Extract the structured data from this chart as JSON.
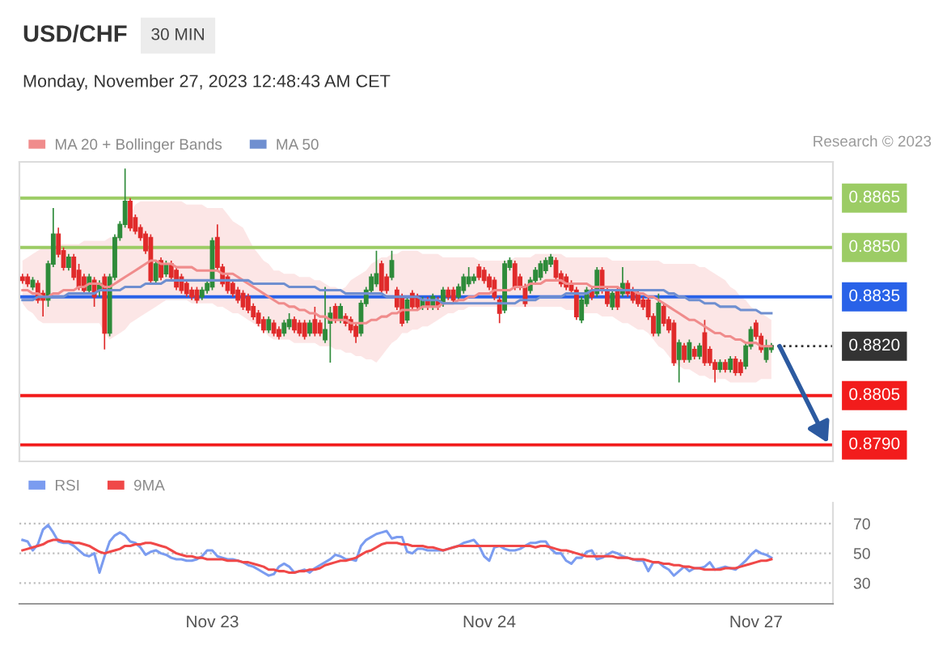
{
  "chart_data": [
    {
      "type": "candlestick",
      "title": "USD/CHF",
      "subtitle": "Monday, November 27, 2023 12:48:43 AM CET",
      "annotations": [
        "30 MIN",
        "Research © 2023"
      ],
      "categories": [
        null,
        null,
        null,
        null,
        null,
        null,
        null,
        null,
        null,
        null,
        null,
        null,
        null,
        null,
        null,
        null,
        null,
        null,
        null,
        null,
        null,
        null,
        null,
        null,
        null,
        null,
        null,
        null,
        null,
        null,
        null,
        null,
        null,
        null,
        null,
        null,
        null,
        "Nov 23",
        null,
        null,
        null,
        null,
        null,
        null,
        null,
        null,
        null,
        null,
        null,
        null,
        null,
        null,
        null,
        null,
        null,
        null,
        null,
        null,
        null,
        null,
        null,
        null,
        null,
        null,
        null,
        null,
        null,
        null,
        null,
        null,
        null,
        null,
        null,
        null,
        null,
        null,
        null,
        null,
        null,
        null,
        null,
        null,
        null,
        null,
        null,
        null,
        null,
        null,
        null,
        null,
        null,
        "Nov 24",
        null,
        null,
        null,
        null,
        null,
        null,
        null,
        null,
        null,
        null,
        null,
        null,
        null,
        null,
        null,
        null,
        null,
        null,
        null,
        null,
        null,
        null,
        null,
        null,
        null,
        null,
        null,
        null,
        null,
        null,
        null,
        null,
        null,
        null,
        null,
        null,
        null,
        null,
        null,
        null,
        null,
        null,
        null,
        null,
        null,
        null,
        null,
        null,
        null,
        null,
        null,
        "Nov 27",
        null,
        null,
        null
      ],
      "ohlc": [
        [
          0.8841,
          0.8842,
          0.8839,
          0.884
        ],
        [
          0.8841,
          0.8842,
          0.8838,
          0.8839
        ],
        [
          0.8838,
          0.8841,
          0.8837,
          0.884
        ],
        [
          0.8839,
          0.884,
          0.8833,
          0.8834
        ],
        [
          0.8836,
          0.8837,
          0.8829,
          0.8834
        ],
        [
          0.8834,
          0.8846,
          0.8832,
          0.8845
        ],
        [
          0.8845,
          0.8862,
          0.8844,
          0.8854
        ],
        [
          0.8854,
          0.8856,
          0.8847,
          0.8848
        ],
        [
          0.8849,
          0.885,
          0.8843,
          0.8844
        ],
        [
          0.8844,
          0.8848,
          0.8843,
          0.8847
        ],
        [
          0.8847,
          0.8848,
          0.884,
          0.8841
        ],
        [
          0.8843,
          0.8845,
          0.8837,
          0.8838
        ],
        [
          0.8841,
          0.8842,
          0.8836,
          0.8837
        ],
        [
          0.8837,
          0.8842,
          0.8836,
          0.8841
        ],
        [
          0.884,
          0.8841,
          0.8832,
          0.8835
        ],
        [
          0.8837,
          0.884,
          0.8835,
          0.8839
        ],
        [
          0.8841,
          0.8842,
          0.8819,
          0.8824
        ],
        [
          0.8824,
          0.8842,
          0.8823,
          0.8841
        ],
        [
          0.8841,
          0.8854,
          0.884,
          0.8853
        ],
        [
          0.8853,
          0.8858,
          0.8852,
          0.8857
        ],
        [
          0.8857,
          0.8874,
          0.8856,
          0.8864
        ],
        [
          0.8864,
          0.8865,
          0.8855,
          0.8856
        ],
        [
          0.8859,
          0.886,
          0.8854,
          0.8855
        ],
        [
          0.8856,
          0.8857,
          0.8852,
          0.8853
        ],
        [
          0.8854,
          0.8855,
          0.8848,
          0.8849
        ],
        [
          0.8853,
          0.8854,
          0.8839,
          0.884
        ],
        [
          0.884,
          0.8846,
          0.8839,
          0.8845
        ],
        [
          0.8846,
          0.8847,
          0.884,
          0.8841
        ],
        [
          0.8842,
          0.8846,
          0.8841,
          0.8845
        ],
        [
          0.8845,
          0.8846,
          0.884,
          0.8841
        ],
        [
          0.8843,
          0.8844,
          0.8837,
          0.8838
        ],
        [
          0.8841,
          0.8842,
          0.8836,
          0.8837
        ],
        [
          0.8839,
          0.884,
          0.8835,
          0.8836
        ],
        [
          0.8837,
          0.8838,
          0.8834,
          0.8835
        ],
        [
          0.8837,
          0.8838,
          0.8833,
          0.8834
        ],
        [
          0.8835,
          0.8838,
          0.8834,
          0.8837
        ],
        [
          0.8837,
          0.884,
          0.8836,
          0.8839
        ],
        [
          0.8838,
          0.8853,
          0.8837,
          0.8852
        ],
        [
          0.8853,
          0.8857,
          0.8843,
          0.8844
        ],
        [
          0.8844,
          0.8845,
          0.8838,
          0.8839
        ],
        [
          0.8841,
          0.8842,
          0.8836,
          0.8837
        ],
        [
          0.8839,
          0.884,
          0.8835,
          0.8836
        ],
        [
          0.8837,
          0.8838,
          0.8833,
          0.8834
        ],
        [
          0.8836,
          0.8837,
          0.8831,
          0.8832
        ],
        [
          0.8835,
          0.8836,
          0.883,
          0.8831
        ],
        [
          0.8832,
          0.8833,
          0.8828,
          0.8829
        ],
        [
          0.883,
          0.8831,
          0.8826,
          0.8827
        ],
        [
          0.8828,
          0.8829,
          0.8824,
          0.8825
        ],
        [
          0.8825,
          0.8829,
          0.8824,
          0.8828
        ],
        [
          0.8827,
          0.8828,
          0.8823,
          0.8824
        ],
        [
          0.8825,
          0.8826,
          0.8822,
          0.8823
        ],
        [
          0.8824,
          0.8828,
          0.8823,
          0.8827
        ],
        [
          0.8826,
          0.883,
          0.8825,
          0.8828
        ],
        [
          0.8828,
          0.8829,
          0.8824,
          0.8825
        ],
        [
          0.8827,
          0.8828,
          0.8823,
          0.8824
        ],
        [
          0.8827,
          0.8828,
          0.8822,
          0.8823
        ],
        [
          0.8824,
          0.8828,
          0.8823,
          0.8827
        ],
        [
          0.8828,
          0.8832,
          0.8823,
          0.8824
        ],
        [
          0.8827,
          0.8828,
          0.8823,
          0.8824
        ],
        [
          0.8822,
          0.8838,
          0.8821,
          0.8825
        ],
        [
          0.8827,
          0.8832,
          0.8815,
          0.883
        ],
        [
          0.8832,
          0.8833,
          0.8827,
          0.8828
        ],
        [
          0.8828,
          0.8833,
          0.8827,
          0.8832
        ],
        [
          0.8829,
          0.883,
          0.8826,
          0.8827
        ],
        [
          0.8828,
          0.8829,
          0.8824,
          0.8825
        ],
        [
          0.8826,
          0.8827,
          0.8821,
          0.8823
        ],
        [
          0.8824,
          0.8834,
          0.8823,
          0.8833
        ],
        [
          0.8833,
          0.8838,
          0.8832,
          0.8837
        ],
        [
          0.8837,
          0.8842,
          0.8836,
          0.8841
        ],
        [
          0.8839,
          0.8849,
          0.8838,
          0.8842
        ],
        [
          0.8845,
          0.8846,
          0.8836,
          0.8837
        ],
        [
          0.8841,
          0.8842,
          0.8836,
          0.8837
        ],
        [
          0.8841,
          0.8849,
          0.884,
          0.8846
        ],
        [
          0.8837,
          0.8838,
          0.8831,
          0.8832
        ],
        [
          0.8835,
          0.8836,
          0.8826,
          0.8827
        ],
        [
          0.8828,
          0.8835,
          0.8827,
          0.8834
        ],
        [
          0.8836,
          0.8837,
          0.8831,
          0.8832
        ],
        [
          0.8835,
          0.8836,
          0.8831,
          0.8832
        ],
        [
          0.8832,
          0.8835,
          0.8831,
          0.8834
        ],
        [
          0.8834,
          0.8835,
          0.8831,
          0.8832
        ],
        [
          0.8832,
          0.8836,
          0.8831,
          0.8835
        ],
        [
          0.8834,
          0.8835,
          0.8831,
          0.8832
        ],
        [
          0.8833,
          0.8838,
          0.8832,
          0.8837
        ],
        [
          0.8837,
          0.8838,
          0.8834,
          0.8835
        ],
        [
          0.8837,
          0.8838,
          0.8833,
          0.8834
        ],
        [
          0.8835,
          0.8839,
          0.8834,
          0.8838
        ],
        [
          0.8837,
          0.8842,
          0.8836,
          0.8841
        ],
        [
          0.8839,
          0.8844,
          0.8838,
          0.8841
        ],
        [
          0.884,
          0.8842,
          0.8839,
          0.8841
        ],
        [
          0.8844,
          0.8845,
          0.884,
          0.8841
        ],
        [
          0.8843,
          0.8844,
          0.8839,
          0.884
        ],
        [
          0.8841,
          0.8842,
          0.8837,
          0.8838
        ],
        [
          0.884,
          0.8841,
          0.8834,
          0.8835
        ],
        [
          0.8834,
          0.8835,
          0.8827,
          0.883
        ],
        [
          0.8831,
          0.8846,
          0.883,
          0.8845
        ],
        [
          0.8844,
          0.8847,
          0.8843,
          0.8846
        ],
        [
          0.8845,
          0.8846,
          0.8837,
          0.8838
        ],
        [
          0.8841,
          0.8842,
          0.8837,
          0.8838
        ],
        [
          0.8838,
          0.8839,
          0.8832,
          0.8833
        ],
        [
          0.8837,
          0.8841,
          0.8836,
          0.884
        ],
        [
          0.884,
          0.8844,
          0.8839,
          0.8843
        ],
        [
          0.8841,
          0.8846,
          0.884,
          0.8845
        ],
        [
          0.8843,
          0.8847,
          0.8842,
          0.8846
        ],
        [
          0.8845,
          0.8848,
          0.8844,
          0.8847
        ],
        [
          0.8846,
          0.8847,
          0.884,
          0.8841
        ],
        [
          0.8842,
          0.8843,
          0.8838,
          0.8839
        ],
        [
          0.8841,
          0.8842,
          0.8837,
          0.8838
        ],
        [
          0.8839,
          0.884,
          0.8836,
          0.8837
        ],
        [
          0.8837,
          0.8838,
          0.8828,
          0.8829
        ],
        [
          0.8828,
          0.8835,
          0.8827,
          0.8834
        ],
        [
          0.8833,
          0.8838,
          0.8832,
          0.8837
        ],
        [
          0.8837,
          0.8838,
          0.8834,
          0.8835
        ],
        [
          0.8836,
          0.8844,
          0.8835,
          0.8843
        ],
        [
          0.8843,
          0.8844,
          0.8836,
          0.8837
        ],
        [
          0.8837,
          0.8838,
          0.8832,
          0.8833
        ],
        [
          0.8832,
          0.8837,
          0.8831,
          0.8836
        ],
        [
          0.8837,
          0.8838,
          0.8831,
          0.8832
        ],
        [
          0.8836,
          0.8844,
          0.8835,
          0.8839
        ],
        [
          0.8839,
          0.884,
          0.8835,
          0.8836
        ],
        [
          0.8837,
          0.8838,
          0.8833,
          0.8834
        ],
        [
          0.8836,
          0.8837,
          0.8832,
          0.8833
        ],
        [
          0.8834,
          0.8835,
          0.8831,
          0.8832
        ],
        [
          0.8834,
          0.8835,
          0.8828,
          0.8829
        ],
        [
          0.8829,
          0.883,
          0.8823,
          0.8824
        ],
        [
          0.8824,
          0.8836,
          0.8823,
          0.8833
        ],
        [
          0.8832,
          0.8833,
          0.8826,
          0.8827
        ],
        [
          0.8828,
          0.8829,
          0.8824,
          0.8825
        ],
        [
          0.8827,
          0.8828,
          0.8814,
          0.8815
        ],
        [
          0.8816,
          0.8822,
          0.8809,
          0.8821
        ],
        [
          0.882,
          0.8821,
          0.8815,
          0.8816
        ],
        [
          0.8816,
          0.8822,
          0.8815,
          0.8821
        ],
        [
          0.8819,
          0.882,
          0.8816,
          0.8817
        ],
        [
          0.8817,
          0.8821,
          0.8816,
          0.882
        ],
        [
          0.8824,
          0.8828,
          0.8814,
          0.8815
        ],
        [
          0.8819,
          0.882,
          0.8814,
          0.8815
        ],
        [
          0.8815,
          0.8816,
          0.8809,
          0.8813
        ],
        [
          0.8813,
          0.8816,
          0.8812,
          0.8815
        ],
        [
          0.8815,
          0.8816,
          0.8812,
          0.8813
        ],
        [
          0.8813,
          0.8817,
          0.8812,
          0.8816
        ],
        [
          0.8816,
          0.8817,
          0.8811,
          0.8812
        ],
        [
          0.8815,
          0.8816,
          0.8811,
          0.8812
        ],
        [
          0.8814,
          0.8821,
          0.8813,
          0.882
        ],
        [
          0.882,
          0.8826,
          0.8819,
          0.8825
        ],
        [
          0.8827,
          0.8828,
          0.8822,
          0.8823
        ],
        [
          0.8823,
          0.8824,
          0.8818,
          0.8819
        ],
        [
          0.8816,
          0.8822,
          0.8815,
          0.882
        ],
        [
          0.8819,
          0.8821,
          0.8818,
          0.882
        ]
      ],
      "colors": [
        "#e02b2b",
        "#e02b2b",
        "#2e8b3a",
        "#e02b2b",
        "#e02b2b",
        "#2e8b3a",
        "#2e8b3a",
        "#e02b2b",
        "#e02b2b",
        "#2e8b3a",
        "#e02b2b",
        "#e02b2b",
        "#e02b2b",
        "#2e8b3a",
        "#e02b2b",
        "#2e8b3a",
        "#e02b2b",
        "#2e8b3a",
        "#2e8b3a",
        "#2e8b3a",
        "#2e8b3a",
        "#e02b2b",
        "#e02b2b",
        "#e02b2b",
        "#e02b2b",
        "#e02b2b",
        "#2e8b3a",
        "#e02b2b",
        "#2e8b3a",
        "#e02b2b",
        "#e02b2b",
        "#e02b2b",
        "#e02b2b",
        "#e02b2b",
        "#e02b2b",
        "#2e8b3a",
        "#2e8b3a",
        "#2e8b3a",
        "#e02b2b",
        "#e02b2b",
        "#e02b2b",
        "#e02b2b",
        "#e02b2b",
        "#e02b2b",
        "#e02b2b",
        "#e02b2b",
        "#e02b2b",
        "#e02b2b",
        "#2e8b3a",
        "#e02b2b",
        "#e02b2b",
        "#2e8b3a",
        "#2e8b3a",
        "#e02b2b",
        "#e02b2b",
        "#e02b2b",
        "#2e8b3a",
        "#e02b2b",
        "#e02b2b",
        "#2e8b3a",
        "#2e8b3a",
        "#e02b2b",
        "#2e8b3a",
        "#e02b2b",
        "#e02b2b",
        "#e02b2b",
        "#2e8b3a",
        "#2e8b3a",
        "#2e8b3a",
        "#2e8b3a",
        "#e02b2b",
        "#e02b2b",
        "#2e8b3a",
        "#e02b2b",
        "#e02b2b",
        "#2e8b3a",
        "#e02b2b",
        "#e02b2b",
        "#2e8b3a",
        "#e02b2b",
        "#2e8b3a",
        "#e02b2b",
        "#2e8b3a",
        "#e02b2b",
        "#e02b2b",
        "#2e8b3a",
        "#2e8b3a",
        "#2e8b3a",
        "#2e8b3a",
        "#e02b2b",
        "#e02b2b",
        "#e02b2b",
        "#e02b2b",
        "#e02b2b",
        "#2e8b3a",
        "#2e8b3a",
        "#e02b2b",
        "#e02b2b",
        "#e02b2b",
        "#2e8b3a",
        "#2e8b3a",
        "#2e8b3a",
        "#2e8b3a",
        "#2e8b3a",
        "#e02b2b",
        "#e02b2b",
        "#e02b2b",
        "#e02b2b",
        "#e02b2b",
        "#2e8b3a",
        "#2e8b3a",
        "#e02b2b",
        "#2e8b3a",
        "#e02b2b",
        "#e02b2b",
        "#2e8b3a",
        "#e02b2b",
        "#2e8b3a",
        "#e02b2b",
        "#e02b2b",
        "#e02b2b",
        "#e02b2b",
        "#e02b2b",
        "#e02b2b",
        "#2e8b3a",
        "#e02b2b",
        "#e02b2b",
        "#e02b2b",
        "#2e8b3a",
        "#e02b2b",
        "#2e8b3a",
        "#e02b2b",
        "#2e8b3a",
        "#e02b2b",
        "#e02b2b",
        "#e02b2b",
        "#2e8b3a",
        "#e02b2b",
        "#2e8b3a",
        "#e02b2b",
        "#e02b2b",
        "#2e8b3a",
        "#2e8b3a",
        "#e02b2b",
        "#e02b2b",
        "#2e8b3a",
        "#2e8b3a"
      ],
      "series": [
        {
          "name": "MA 20 + Bollinger Bands",
          "type": "line",
          "color": "#f08c8c",
          "values": [
            0.8837,
            0.8837,
            0.8836,
            0.8836,
            0.8835,
            0.8835,
            0.8836,
            0.8836,
            0.8837,
            0.8837,
            0.8837,
            0.8838,
            0.8838,
            0.8839,
            0.8839,
            0.8839,
            0.8838,
            0.8838,
            0.8839,
            0.884,
            0.8841,
            0.8842,
            0.8843,
            0.8844,
            0.8845,
            0.8846,
            0.8846,
            0.8845,
            0.8845,
            0.8845,
            0.8844,
            0.8844,
            0.8844,
            0.8844,
            0.8843,
            0.8843,
            0.8843,
            0.8843,
            0.8843,
            0.8842,
            0.8842,
            0.8842,
            0.8841,
            0.884,
            0.8839,
            0.8838,
            0.8837,
            0.8836,
            0.8835,
            0.8834,
            0.8833,
            0.8833,
            0.8832,
            0.8832,
            0.8831,
            0.8831,
            0.883,
            0.883,
            0.8829,
            0.8829,
            0.8828,
            0.8828,
            0.8828,
            0.8828,
            0.8827,
            0.8827,
            0.8827,
            0.8827,
            0.8828,
            0.8828,
            0.8829,
            0.8829,
            0.883,
            0.883,
            0.8831,
            0.8831,
            0.8831,
            0.8831,
            0.8832,
            0.8832,
            0.8832,
            0.8832,
            0.8833,
            0.8833,
            0.8833,
            0.8834,
            0.8834,
            0.8835,
            0.8835,
            0.8836,
            0.8836,
            0.8836,
            0.8837,
            0.8837,
            0.8837,
            0.8837,
            0.8838,
            0.8838,
            0.8838,
            0.8839,
            0.8839,
            0.8839,
            0.884,
            0.884,
            0.884,
            0.884,
            0.8839,
            0.8839,
            0.8839,
            0.8839,
            0.8839,
            0.8838,
            0.8838,
            0.8838,
            0.8838,
            0.8838,
            0.8838,
            0.8837,
            0.8837,
            0.8837,
            0.8836,
            0.8836,
            0.8835,
            0.8835,
            0.8834,
            0.8833,
            0.8832,
            0.8831,
            0.883,
            0.8829,
            0.8828,
            0.8828,
            0.8827,
            0.8826,
            0.8825,
            0.8824,
            0.8824,
            0.8823,
            0.8823,
            0.8822,
            0.8822,
            0.8821,
            0.8821,
            0.8821,
            0.882,
            0.882,
            0.882
          ],
          "lower": [
            0.8833,
            0.8831,
            0.883,
            0.8828,
            0.8827,
            0.8827,
            0.8827,
            0.8827,
            0.8827,
            0.8827,
            0.8827,
            0.8827,
            0.8827,
            0.8827,
            0.8827,
            0.8827,
            0.8824,
            0.8822,
            0.8823,
            0.8824,
            0.8825,
            0.8827,
            0.8828,
            0.8829,
            0.883,
            0.8831,
            0.8832,
            0.8833,
            0.8834,
            0.8834,
            0.8834,
            0.8834,
            0.8834,
            0.8833,
            0.8833,
            0.8833,
            0.8833,
            0.8833,
            0.8832,
            0.8832,
            0.8831,
            0.883,
            0.883,
            0.8829,
            0.8828,
            0.8827,
            0.8826,
            0.8825,
            0.8823,
            0.8822,
            0.8822,
            0.8822,
            0.8822,
            0.8821,
            0.8821,
            0.8821,
            0.8821,
            0.8821,
            0.882,
            0.882,
            0.882,
            0.8819,
            0.8819,
            0.8818,
            0.8818,
            0.8817,
            0.8817,
            0.8816,
            0.8816,
            0.8815,
            0.8817,
            0.8819,
            0.8821,
            0.8822,
            0.8824,
            0.8824,
            0.8825,
            0.8825,
            0.8826,
            0.8826,
            0.8827,
            0.8828,
            0.8829,
            0.883,
            0.883,
            0.8831,
            0.8831,
            0.8832,
            0.8832,
            0.8832,
            0.8832,
            0.8832,
            0.8832,
            0.8832,
            0.8832,
            0.8832,
            0.8832,
            0.8832,
            0.8832,
            0.8832,
            0.8832,
            0.8832,
            0.8832,
            0.8832,
            0.8832,
            0.8832,
            0.8831,
            0.8831,
            0.8831,
            0.883,
            0.883,
            0.883,
            0.883,
            0.8829,
            0.8829,
            0.8829,
            0.8828,
            0.8827,
            0.8827,
            0.8826,
            0.8825,
            0.8825,
            0.8824,
            0.8822,
            0.882,
            0.8819,
            0.8817,
            0.8815,
            0.8814,
            0.8813,
            0.8813,
            0.8812,
            0.8811,
            0.8811,
            0.881,
            0.881,
            0.881,
            0.881,
            0.8809,
            0.8809,
            0.8809,
            0.8809,
            0.8809,
            0.8809,
            0.881,
            0.881,
            0.881
          ],
          "upper": [
            0.8846,
            0.8847,
            0.8848,
            0.8849,
            0.885,
            0.885,
            0.885,
            0.8851,
            0.8851,
            0.8851,
            0.8851,
            0.8851,
            0.8852,
            0.8852,
            0.8852,
            0.8852,
            0.8852,
            0.8853,
            0.8853,
            0.8855,
            0.8858,
            0.886,
            0.8863,
            0.8864,
            0.8864,
            0.8864,
            0.8864,
            0.8864,
            0.8864,
            0.8864,
            0.8864,
            0.8864,
            0.8863,
            0.8863,
            0.8863,
            0.8863,
            0.8862,
            0.8862,
            0.8862,
            0.8862,
            0.886,
            0.8858,
            0.8857,
            0.8856,
            0.8853,
            0.885,
            0.8848,
            0.8846,
            0.8845,
            0.8843,
            0.8843,
            0.8842,
            0.8842,
            0.8842,
            0.8841,
            0.8841,
            0.8841,
            0.884,
            0.884,
            0.8839,
            0.8838,
            0.8838,
            0.8837,
            0.8838,
            0.884,
            0.8841,
            0.8842,
            0.8843,
            0.8845,
            0.8846,
            0.8847,
            0.8847,
            0.8848,
            0.8848,
            0.8849,
            0.8849,
            0.8849,
            0.8849,
            0.8848,
            0.8848,
            0.8848,
            0.8848,
            0.8847,
            0.8847,
            0.8847,
            0.8847,
            0.8847,
            0.8847,
            0.8847,
            0.8846,
            0.8846,
            0.8846,
            0.8846,
            0.8846,
            0.8846,
            0.8846,
            0.8847,
            0.8847,
            0.8847,
            0.8847,
            0.8848,
            0.8848,
            0.8848,
            0.8848,
            0.8848,
            0.8848,
            0.8847,
            0.8847,
            0.8847,
            0.8847,
            0.8847,
            0.8847,
            0.8847,
            0.8847,
            0.8847,
            0.8846,
            0.8846,
            0.8846,
            0.8846,
            0.8846,
            0.8846,
            0.8846,
            0.8846,
            0.8846,
            0.8846,
            0.8845,
            0.8845,
            0.8845,
            0.8845,
            0.8845,
            0.8845,
            0.8845,
            0.8844,
            0.8844,
            0.8843,
            0.8842,
            0.8841,
            0.884,
            0.8838,
            0.8837,
            0.8835,
            0.8834,
            0.8832,
            0.8831,
            0.883,
            0.8829,
            0.8828
          ]
        },
        {
          "name": "MA 50",
          "type": "line",
          "color": "#6f8fd0",
          "values": [
            0.8834,
            0.8834,
            0.8834,
            0.8835,
            0.8835,
            0.8835,
            0.8835,
            0.8835,
            0.8835,
            0.8836,
            0.8836,
            0.8836,
            0.8836,
            0.8836,
            0.8836,
            0.8837,
            0.8837,
            0.8837,
            0.8837,
            0.8837,
            0.8838,
            0.8838,
            0.8838,
            0.8838,
            0.8839,
            0.8839,
            0.8839,
            0.8839,
            0.884,
            0.884,
            0.884,
            0.884,
            0.884,
            0.884,
            0.884,
            0.884,
            0.884,
            0.884,
            0.884,
            0.884,
            0.884,
            0.884,
            0.884,
            0.884,
            0.884,
            0.8839,
            0.8839,
            0.8839,
            0.8839,
            0.8839,
            0.8839,
            0.8839,
            0.8838,
            0.8838,
            0.8838,
            0.8838,
            0.8838,
            0.8838,
            0.8837,
            0.8837,
            0.8837,
            0.8837,
            0.8837,
            0.8836,
            0.8836,
            0.8836,
            0.8836,
            0.8836,
            0.8836,
            0.8836,
            0.8836,
            0.8835,
            0.8835,
            0.8835,
            0.8835,
            0.8835,
            0.8835,
            0.8835,
            0.8834,
            0.8834,
            0.8834,
            0.8834,
            0.8833,
            0.8833,
            0.8833,
            0.8833,
            0.8833,
            0.8833,
            0.8833,
            0.8833,
            0.8833,
            0.8833,
            0.8833,
            0.8833,
            0.8833,
            0.8833,
            0.8833,
            0.8834,
            0.8834,
            0.8834,
            0.8834,
            0.8835,
            0.8835,
            0.8835,
            0.8835,
            0.8835,
            0.8836,
            0.8836,
            0.8836,
            0.8836,
            0.8836,
            0.8837,
            0.8837,
            0.8837,
            0.8837,
            0.8837,
            0.8837,
            0.8837,
            0.8837,
            0.8837,
            0.8837,
            0.8837,
            0.8837,
            0.8837,
            0.8837,
            0.8837,
            0.8836,
            0.8836,
            0.8835,
            0.8835,
            0.8834,
            0.8834,
            0.8834,
            0.8833,
            0.8833,
            0.8833,
            0.8832,
            0.8832,
            0.8832,
            0.8832,
            0.8831,
            0.8831,
            0.8831,
            0.8831,
            0.883,
            0.883,
            0.883
          ]
        }
      ],
      "ylim": [
        0.8785,
        0.8876
      ],
      "ref_lines": [
        {
          "axis": "y",
          "value": 0.8865,
          "label": "0.8865",
          "color": "#9ccc65"
        },
        {
          "axis": "y",
          "value": 0.885,
          "label": "0.8850",
          "color": "#9ccc65"
        },
        {
          "axis": "y",
          "value": 0.8835,
          "label": "0.8835",
          "color": "#2962e8"
        },
        {
          "axis": "y",
          "value": 0.882,
          "label": "0.8820",
          "color": "#333333",
          "line_style": "dotted"
        },
        {
          "axis": "y",
          "value": 0.8805,
          "label": "0.8805",
          "color": "#f21c1c"
        },
        {
          "axis": "y",
          "value": 0.879,
          "label": "0.8790",
          "color": "#f21c1c"
        }
      ],
      "legend": "top left",
      "tick_labels": false
    },
    {
      "type": "line",
      "categories": [
        null,
        null,
        null,
        null,
        null,
        null,
        null,
        null,
        null,
        null,
        null,
        null,
        null,
        null,
        null,
        null,
        null,
        null,
        null,
        null,
        null,
        null,
        null,
        null,
        null,
        null,
        null,
        null,
        null,
        null,
        null,
        null,
        null,
        null,
        null,
        null,
        null,
        "Nov 23",
        null,
        null,
        null,
        null,
        null,
        null,
        null,
        null,
        null,
        null,
        null,
        null,
        null,
        null,
        null,
        null,
        null,
        null,
        null,
        null,
        null,
        null,
        null,
        null,
        null,
        null,
        null,
        null,
        null,
        null,
        null,
        null,
        null,
        null,
        null,
        null,
        null,
        null,
        null,
        null,
        null,
        null,
        null,
        null,
        null,
        null,
        null,
        null,
        null,
        null,
        null,
        null,
        null,
        "Nov 24",
        null,
        null,
        null,
        null,
        null,
        null,
        null,
        null,
        null,
        null,
        null,
        null,
        null,
        null,
        null,
        null,
        null,
        null,
        null,
        null,
        null,
        null,
        null,
        null,
        null,
        null,
        null,
        null,
        null,
        null,
        null,
        null,
        null,
        null,
        null,
        null,
        null,
        null,
        null,
        null,
        null,
        null,
        null,
        null,
        null,
        null,
        null,
        null,
        null,
        null,
        null,
        "Nov 27",
        null,
        null,
        null
      ],
      "series": [
        {
          "name": "RSI",
          "color": "#7b9cf0",
          "values": [
            59,
            58,
            52,
            56,
            66,
            69,
            64,
            58,
            57,
            57,
            55,
            52,
            49,
            48,
            50,
            37,
            48,
            58,
            62,
            64,
            62,
            58,
            57,
            54,
            49,
            51,
            52,
            50,
            49,
            47,
            46,
            46,
            45,
            45,
            46,
            48,
            52,
            52,
            48,
            47,
            46,
            46,
            45,
            44,
            42,
            41,
            39,
            37,
            35,
            36,
            41,
            43,
            41,
            37,
            38,
            39,
            37,
            40,
            42,
            44,
            46,
            49,
            48,
            46,
            46,
            45,
            55,
            59,
            61,
            63,
            64,
            65,
            60,
            61,
            61,
            51,
            50,
            53,
            53,
            52,
            52,
            52,
            52,
            53,
            54,
            55,
            57,
            58,
            59,
            55,
            48,
            45,
            54,
            55,
            53,
            52,
            52,
            53,
            55,
            57,
            57,
            58,
            58,
            53,
            50,
            50,
            45,
            43,
            47,
            47,
            51,
            52,
            46,
            47,
            49,
            51,
            50,
            48,
            47,
            46,
            45,
            45,
            38,
            44,
            44,
            41,
            39,
            35,
            38,
            41,
            38,
            40,
            40,
            41,
            44,
            39,
            40,
            41,
            40,
            39,
            42,
            45,
            49,
            52,
            50,
            49,
            47
          ]
        },
        {
          "name": "9MA",
          "color": "#f04848",
          "values": [
            52,
            53,
            54,
            55,
            56,
            58,
            59,
            59,
            58,
            58,
            57,
            57,
            56,
            55,
            53,
            51,
            50,
            51,
            52,
            53,
            55,
            55,
            56,
            56,
            57,
            57,
            56,
            55,
            54,
            52,
            50,
            49,
            48,
            48,
            47,
            47,
            46,
            46,
            46,
            46,
            45,
            45,
            45,
            44,
            44,
            43,
            42,
            41,
            39,
            39,
            38,
            38,
            37,
            37,
            38,
            38,
            39,
            39,
            40,
            42,
            43,
            44,
            45,
            45,
            46,
            47,
            49,
            51,
            52,
            54,
            56,
            57,
            57,
            57,
            56,
            56,
            55,
            55,
            55,
            54,
            54,
            53,
            52,
            53,
            54,
            55,
            55,
            55,
            55,
            55,
            55,
            55,
            55,
            55,
            55,
            55,
            55,
            55,
            55,
            55,
            54,
            55,
            55,
            54,
            53,
            52,
            52,
            51,
            50,
            49,
            48,
            48,
            48,
            48,
            48,
            48,
            47,
            47,
            47,
            46,
            46,
            46,
            45,
            44,
            44,
            43,
            43,
            42,
            42,
            41,
            41,
            40,
            40,
            39,
            39,
            39,
            39,
            40,
            40,
            40,
            41,
            42,
            43,
            44,
            45,
            45,
            46
          ]
        }
      ],
      "ylim": [
        16,
        84
      ],
      "yticks": [
        30,
        50,
        70
      ],
      "grid": "y",
      "legend": "top left"
    }
  ]
}
